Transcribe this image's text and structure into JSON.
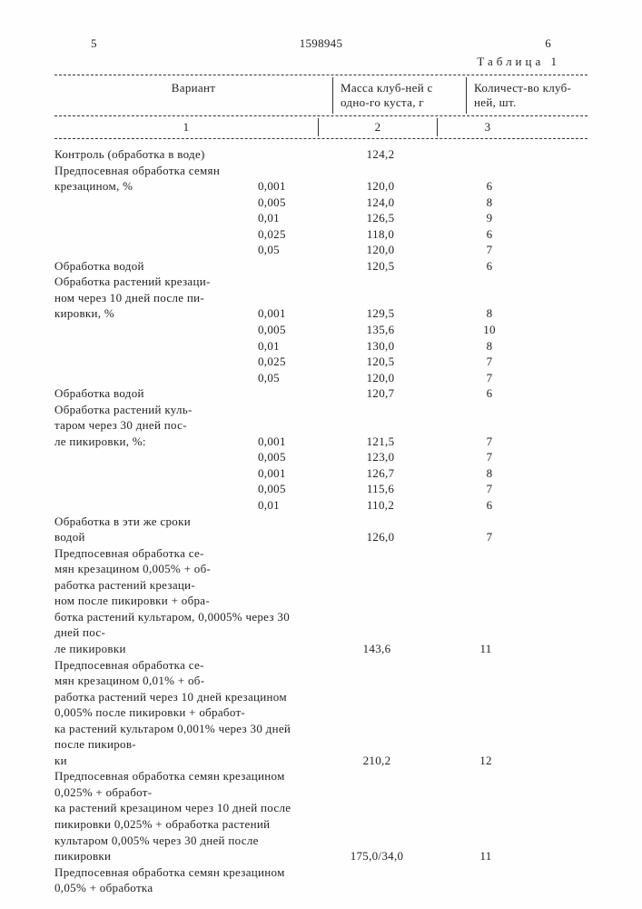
{
  "page": {
    "left_num": "5",
    "doc_number": "1598945",
    "right_num": "6",
    "table_caption": "Таблица 1"
  },
  "header": {
    "col1": "Вариант",
    "col2": "Масса клуб-ней с одно-го куста, г",
    "col3": "Количест-во клуб-ней, шт.",
    "n1": "1",
    "n2": "2",
    "n3": "3"
  },
  "rows": [
    {
      "desc": "Контроль (обработка в воде)",
      "conc": "",
      "mass": "124,2",
      "qty": ""
    },
    {
      "desc": "Предпосевная обработка семян",
      "conc": "",
      "mass": "",
      "qty": ""
    },
    {
      "desc": "крезацином, %",
      "conc": "0,001",
      "mass": "120,0",
      "qty": "6"
    },
    {
      "desc": "",
      "conc": "0,005",
      "mass": "124,0",
      "qty": "8"
    },
    {
      "desc": "",
      "conc": "0,01",
      "mass": "126,5",
      "qty": "9"
    },
    {
      "desc": "",
      "conc": "0,025",
      "mass": "118,0",
      "qty": "6"
    },
    {
      "desc": "",
      "conc": "0,05",
      "mass": "120,0",
      "qty": "7"
    },
    {
      "desc": "Обработка водой",
      "conc": "",
      "mass": "120,5",
      "qty": "6"
    },
    {
      "desc": "Обработка растений крезаци-",
      "conc": "",
      "mass": "",
      "qty": ""
    },
    {
      "desc": "ном через 10 дней после пи-",
      "conc": "",
      "mass": "",
      "qty": ""
    },
    {
      "desc": "кировки, %",
      "conc": "0,001",
      "mass": "129,5",
      "qty": "8"
    },
    {
      "desc": "",
      "conc": "0,005",
      "mass": "135,6",
      "qty": "10"
    },
    {
      "desc": "",
      "conc": "0,01",
      "mass": "130,0",
      "qty": "8"
    },
    {
      "desc": "",
      "conc": "0,025",
      "mass": "120,5",
      "qty": "7"
    },
    {
      "desc": "",
      "conc": "0,05",
      "mass": "120,0",
      "qty": "7"
    },
    {
      "desc": "Обработка водой",
      "conc": "",
      "mass": "120,7",
      "qty": "6"
    },
    {
      "desc": "Обработка растений куль-",
      "conc": "",
      "mass": "",
      "qty": ""
    },
    {
      "desc": "таром через 30 дней пос-",
      "conc": "",
      "mass": "",
      "qty": ""
    },
    {
      "desc": "ле пикировки, %:",
      "conc": "0,001",
      "mass": "121,5",
      "qty": "7"
    },
    {
      "desc": "",
      "conc": "0,005",
      "mass": "123,0",
      "qty": "7"
    },
    {
      "desc": "",
      "conc": "0,001",
      "mass": "126,7",
      "qty": "8"
    },
    {
      "desc": "",
      "conc": "0,005",
      "mass": "115,6",
      "qty": "7"
    },
    {
      "desc": "",
      "conc": "0,01",
      "mass": "110,2",
      "qty": "6"
    },
    {
      "desc": "Обработка в эти же сроки",
      "conc": "",
      "mass": "",
      "qty": ""
    },
    {
      "desc": "водой",
      "conc": "",
      "mass": "126,0",
      "qty": "7"
    }
  ],
  "long_groups": [
    {
      "text": "Предпосевная обработка се-мян крезацином 0,005% + об-работка растений крезаци-ном после пикировки + обра-ботка растений культаром, 0,0005% через 30 дней пос-ле пикировки",
      "mass": "143,6",
      "qty": "11"
    },
    {
      "text": "Предпосевная обработка се-мян крезацином 0,01% + об-работка растений через 10 дней крезацином 0,005% после пикировки + обработ-ка растений культаром 0,001% через 30 дней после пикиров-ки",
      "mass": "210,2",
      "qty": "12"
    },
    {
      "text": "Предпосевная обработка семян крезацином 0,025% + обработ-ка растений крезацином через 10 дней после пикировки 0,025% + обработка растений культаром 0,005% через 30 дней после пикировки",
      "mass": "175,0/34,0",
      "qty": "11"
    },
    {
      "text": "Предпосевная обработка семян крезацином 0,05% + обработка",
      "mass": "",
      "qty": ""
    }
  ]
}
